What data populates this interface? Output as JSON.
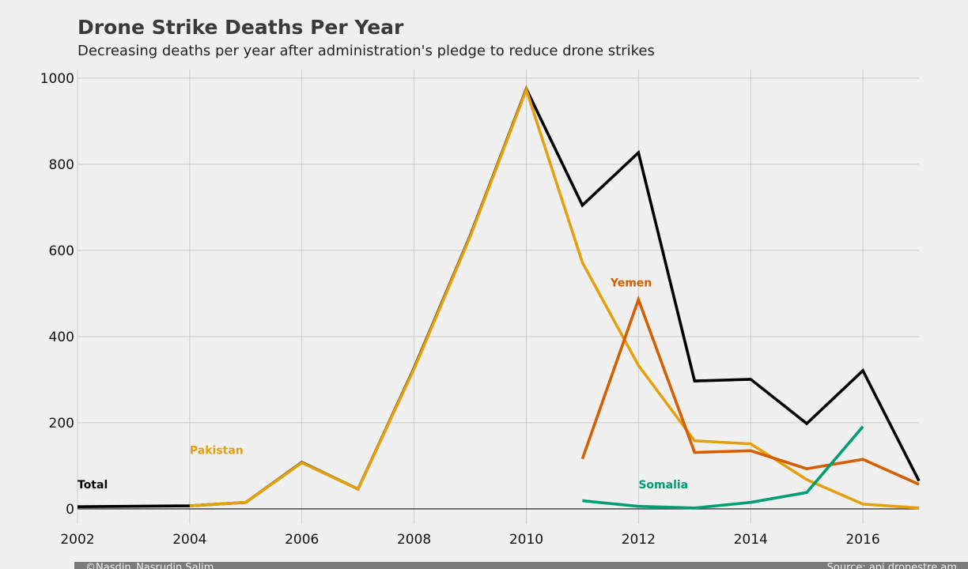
{
  "chart_data": {
    "type": "line",
    "title": "Drone Strike Deaths Per Year",
    "subtitle": "Decreasing deaths per year after administration's pledge to reduce drone strikes",
    "xlabel": "",
    "ylabel": "",
    "xlim": [
      2002,
      2017
    ],
    "ylim": [
      -35,
      1020
    ],
    "x_ticks": [
      2002,
      2004,
      2006,
      2008,
      2010,
      2012,
      2014,
      2016
    ],
    "y_ticks": [
      0,
      200,
      400,
      600,
      800,
      1000
    ],
    "grid": true,
    "legend": "none",
    "series": [
      {
        "name": "Total",
        "color": "#000000",
        "x": [
          2002,
          2004,
          2005,
          2006,
          2007,
          2008,
          2009,
          2010,
          2011,
          2012,
          2013,
          2014,
          2015,
          2016,
          2017
        ],
        "values": [
          5,
          7,
          15,
          108,
          46,
          327,
          634,
          975,
          705,
          827,
          297,
          301,
          198,
          321,
          65
        ]
      },
      {
        "name": "Pakistan",
        "color": "#e5a00d",
        "x": [
          2004,
          2005,
          2006,
          2007,
          2008,
          2009,
          2010,
          2011,
          2012,
          2013,
          2014,
          2015,
          2016,
          2017
        ],
        "values": [
          7,
          15,
          107,
          46,
          325,
          632,
          973,
          572,
          333,
          158,
          151,
          68,
          11,
          2
        ]
      },
      {
        "name": "Yemen",
        "color": "#d55e00",
        "x": [
          2011,
          2012,
          2013,
          2014,
          2015,
          2016,
          2017
        ],
        "values": [
          116,
          486,
          131,
          135,
          93,
          115,
          57
        ]
      },
      {
        "name": "Somalia",
        "color": "#009e73",
        "x": [
          2011,
          2012,
          2013,
          2014,
          2015,
          2016
        ],
        "values": [
          19,
          6,
          2,
          15,
          38,
          191
        ]
      }
    ],
    "annotations": [
      {
        "text": "Total",
        "series": "Total",
        "x": 2002,
        "y": 48,
        "color": "#000000"
      },
      {
        "text": "Pakistan",
        "series": "Pakistan",
        "x": 2004,
        "y": 127,
        "color": "#e5a00d"
      },
      {
        "text": "Yemen",
        "series": "Yemen",
        "x": 2011.5,
        "y": 516,
        "color": "#d55e00"
      },
      {
        "text": "Somalia",
        "series": "Somalia",
        "x": 2012,
        "y": 48,
        "color": "#009e73"
      }
    ]
  },
  "footer": {
    "credit": "©Nasdin_Nasrudin Salim",
    "source": "Source: api.dronestre.am"
  }
}
